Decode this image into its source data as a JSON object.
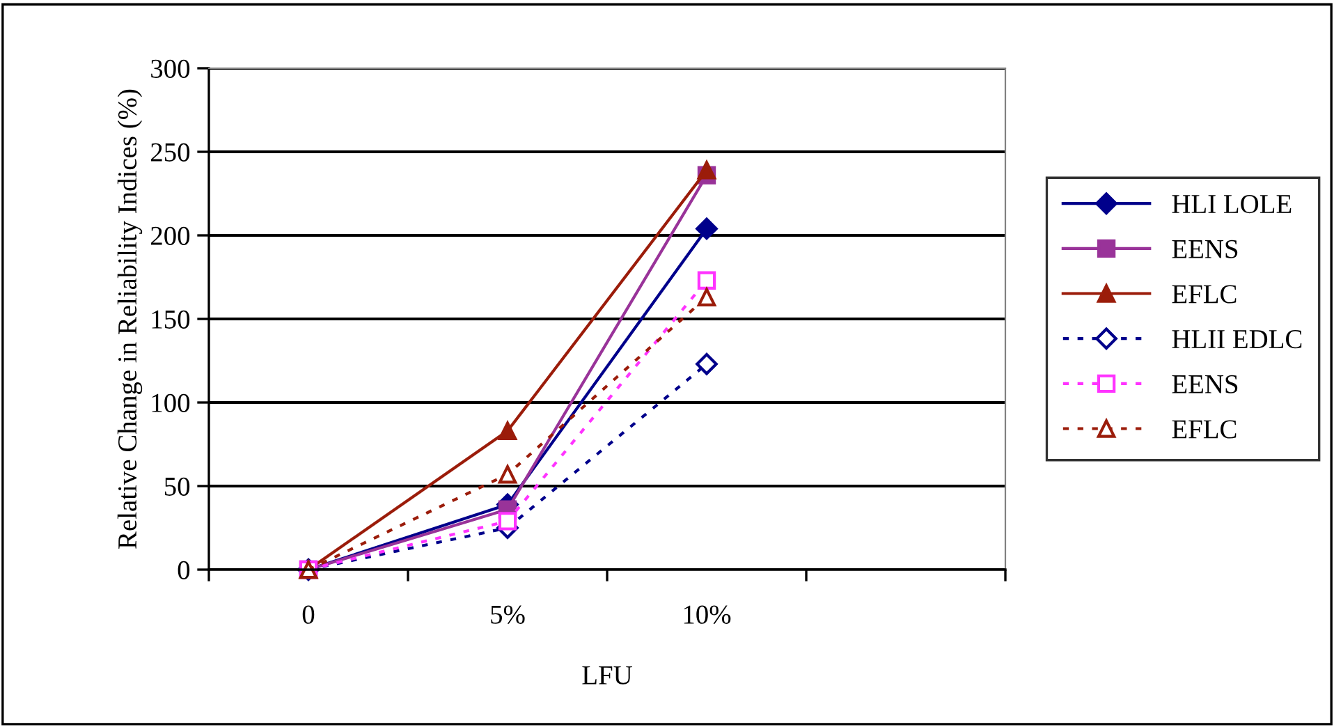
{
  "chart_data": {
    "type": "line",
    "xlabel": "LFU",
    "ylabel": "Relative Change in Reliability Indices (%)",
    "categories": [
      "0",
      "5%",
      "10%"
    ],
    "ylim": [
      0,
      300
    ],
    "yticks": [
      0,
      50,
      100,
      150,
      200,
      250,
      300
    ],
    "grid": "y",
    "legend": "right",
    "series": [
      {
        "name": "HLI LOLE",
        "color": "#00008b",
        "marker": "diamond",
        "line_style": "solid",
        "values": [
          0,
          39,
          204
        ]
      },
      {
        "name": "EENS",
        "color": "#993399",
        "marker": "square",
        "line_style": "solid",
        "values": [
          0,
          36,
          236
        ]
      },
      {
        "name": "EFLC",
        "color": "#9b1c0a",
        "marker": "triangle",
        "line_style": "solid",
        "values": [
          0,
          83,
          239
        ]
      },
      {
        "name": "HLII EDLC",
        "color": "#00008b",
        "marker": "diamond",
        "line_style": "dotted",
        "values": [
          0,
          25,
          123
        ]
      },
      {
        "name": "EENS",
        "color": "#ff33ff",
        "marker": "square",
        "line_style": "dotted",
        "values": [
          0,
          29,
          173
        ]
      },
      {
        "name": "EFLC",
        "color": "#9b1c0a",
        "marker": "triangle",
        "line_style": "dotted",
        "values": [
          0,
          57,
          163
        ]
      }
    ]
  }
}
